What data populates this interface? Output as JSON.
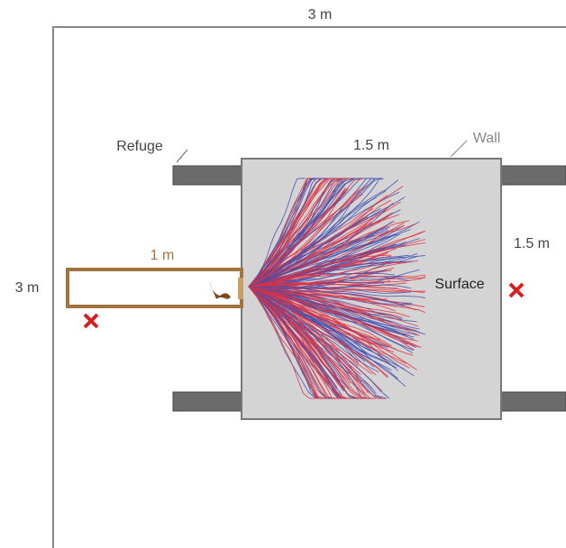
{
  "arena_width": "3 m",
  "arena_height": "3 m",
  "refuge": "Refuge",
  "surface_width": "1.5 m",
  "wall": "Wall",
  "surface_height": "1.5 m",
  "corridor_length": "1 m",
  "surface": "Surface"
}
